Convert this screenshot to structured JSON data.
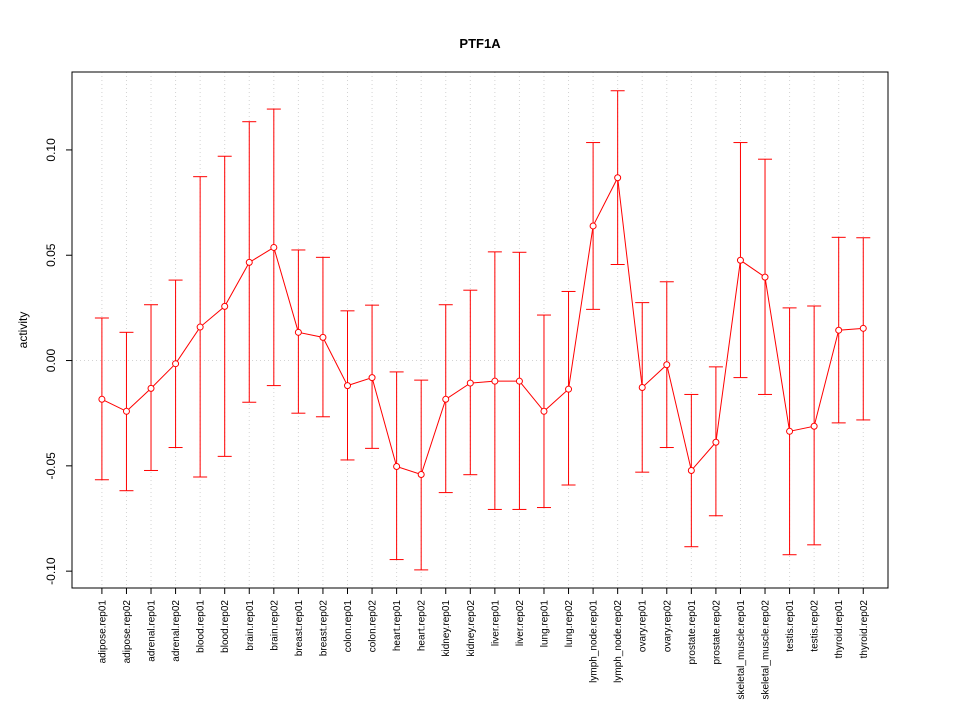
{
  "colors": {
    "series": "#ff0000",
    "grid": "#d3d3d3",
    "axis": "#000000"
  },
  "chart_data": {
    "type": "line",
    "title": "PTF1A",
    "xlabel": "",
    "ylabel": "activity",
    "ylim": [
      -0.108,
      0.137
    ],
    "yticks": [
      -0.1,
      -0.05,
      0.0,
      0.05,
      0.1
    ],
    "ytick_labels": [
      "-0.10",
      "-0.05",
      "0.00",
      "0.05",
      "0.10"
    ],
    "grid": true,
    "categories": [
      "adipose.rep01",
      "adipose.rep02",
      "adrenal.rep01",
      "adrenal.rep02",
      "blood.rep01",
      "blood.rep02",
      "brain.rep01",
      "brain.rep02",
      "breast.rep01",
      "breast.rep02",
      "colon.rep01",
      "colon.rep02",
      "heart.rep01",
      "heart.rep02",
      "kidney.rep01",
      "kidney.rep02",
      "liver.rep01",
      "liver.rep02",
      "lung.rep01",
      "lung.rep02",
      "lymph_node.rep01",
      "lymph_node.rep02",
      "ovary.rep01",
      "ovary.rep02",
      "prostate.rep01",
      "prostate.rep02",
      "skeletal_muscle.rep01",
      "skeletal_muscle.rep02",
      "testis.rep01",
      "testis.rep02",
      "thyroid.rep01",
      "thyroid.rep02"
    ],
    "series": [
      {
        "name": "PTF1A",
        "values": [
          -0.0184,
          -0.0241,
          -0.0132,
          -0.0015,
          0.0159,
          0.0257,
          0.0466,
          0.0537,
          0.0134,
          0.011,
          -0.0119,
          -0.0081,
          -0.0503,
          -0.0541,
          -0.0184,
          -0.0107,
          -0.0098,
          -0.0098,
          -0.0241,
          -0.0136,
          0.0639,
          0.0868,
          -0.0128,
          -0.002,
          -0.0522,
          -0.0388,
          0.0476,
          0.0396,
          -0.0336,
          -0.0312,
          0.0144,
          0.0153
        ],
        "upper": [
          0.0202,
          0.0134,
          0.0265,
          0.0382,
          0.0873,
          0.097,
          0.1134,
          0.1194,
          0.0525,
          0.049,
          0.0236,
          0.0263,
          -0.0054,
          -0.0093,
          0.0265,
          0.0334,
          0.0516,
          0.0514,
          0.0216,
          0.0328,
          0.1035,
          0.1281,
          0.0275,
          0.0374,
          -0.0161,
          -0.003,
          0.1035,
          0.0956,
          0.025,
          0.0259,
          0.0585,
          0.0583
        ],
        "lower": [
          -0.0566,
          -0.0618,
          -0.0522,
          -0.0413,
          -0.0553,
          -0.0455,
          -0.0198,
          -0.0119,
          -0.025,
          -0.0267,
          -0.0472,
          -0.0417,
          -0.0945,
          -0.0994,
          -0.0627,
          -0.0542,
          -0.0707,
          -0.0707,
          -0.0698,
          -0.0591,
          0.0243,
          0.0456,
          -0.053,
          -0.0413,
          -0.0884,
          -0.0737,
          -0.0081,
          -0.0161,
          -0.0922,
          -0.0875,
          -0.0296,
          -0.0282
        ]
      }
    ]
  }
}
